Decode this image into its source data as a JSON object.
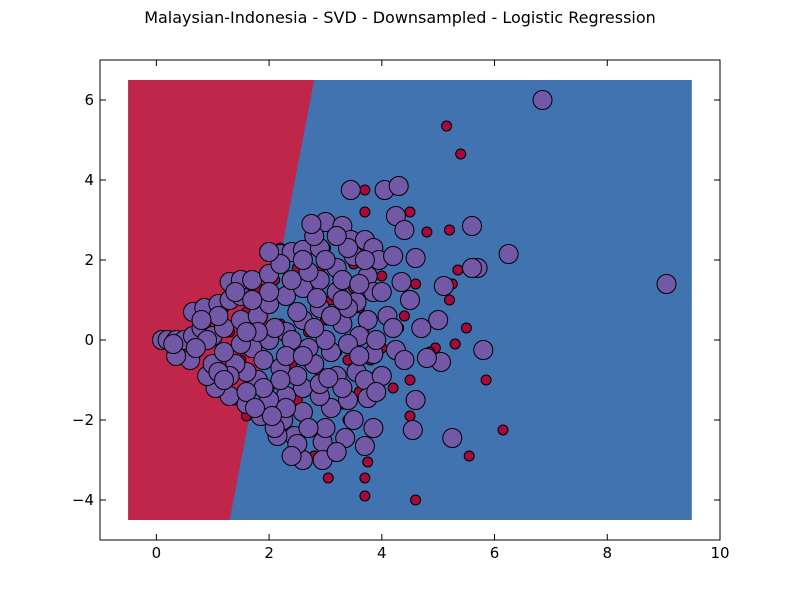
{
  "chart_data": {
    "type": "scatter",
    "title": "Malaysian-Indonesia - SVD - Downsampled - Logistic Regression",
    "xlabel": "",
    "ylabel": "",
    "xlim": [
      -1,
      10
    ],
    "ylim": [
      -5,
      7
    ],
    "x_ticks": [
      0,
      2,
      4,
      6,
      8,
      10
    ],
    "y_ticks": [
      -4,
      -2,
      0,
      2,
      4,
      6
    ],
    "x_tick_labels": [
      "0",
      "2",
      "4",
      "6",
      "8",
      "10"
    ],
    "y_tick_labels": [
      "−4",
      "−2",
      "0",
      "2",
      "4",
      "6"
    ],
    "grid": false,
    "legend": "none",
    "decision_regions": {
      "extent_x": [
        -0.5,
        9.5
      ],
      "extent_y": [
        -4.5,
        6.5
      ],
      "boundary": [
        [
          1.3,
          -4.5
        ],
        [
          2.8,
          6.5
        ]
      ],
      "left_color": "#c0254a",
      "right_color": "#4073b0"
    },
    "series": [
      {
        "class": "small",
        "color": "#a50a3a",
        "points": [
          [
            5.15,
            5.35
          ],
          [
            5.4,
            4.65
          ],
          [
            3.7,
            3.75
          ],
          [
            3.7,
            3.2
          ],
          [
            4.2,
            3.1
          ],
          [
            4.5,
            3.2
          ],
          [
            4.3,
            3.0
          ],
          [
            4.8,
            2.7
          ],
          [
            5.2,
            2.75
          ],
          [
            5.35,
            1.75
          ],
          [
            5.2,
            1.0
          ],
          [
            5.25,
            1.4
          ],
          [
            5.5,
            0.3
          ],
          [
            5.3,
            -0.1
          ],
          [
            4.95,
            -0.2
          ],
          [
            4.85,
            -0.3
          ],
          [
            5.85,
            -1.0
          ],
          [
            5.55,
            -2.9
          ],
          [
            6.15,
            -2.25
          ],
          [
            4.6,
            -4.0
          ],
          [
            3.7,
            -3.9
          ],
          [
            3.7,
            -3.45
          ],
          [
            3.75,
            -3.05
          ],
          [
            3.05,
            -3.45
          ],
          [
            4.5,
            -1.9
          ],
          [
            4.5,
            -1.0
          ],
          [
            4.3,
            0.3
          ],
          [
            4.1,
            0.7
          ],
          [
            4.4,
            0.6
          ],
          [
            3.9,
            1.2
          ],
          [
            4.0,
            1.6
          ],
          [
            3.5,
            1.9
          ],
          [
            3.3,
            2.5
          ],
          [
            2.6,
            2.2
          ],
          [
            2.2,
            2.3
          ],
          [
            2.4,
            1.2
          ],
          [
            2.0,
            0.9
          ],
          [
            1.6,
            0.7
          ],
          [
            1.2,
            0.8
          ],
          [
            1.0,
            0.6
          ],
          [
            1.7,
            -0.1
          ],
          [
            1.5,
            -0.5
          ],
          [
            2.2,
            -0.8
          ],
          [
            2.0,
            -1.2
          ],
          [
            1.4,
            -1.5
          ],
          [
            1.6,
            -1.9
          ],
          [
            2.3,
            -2.0
          ],
          [
            2.6,
            -2.3
          ],
          [
            2.8,
            -2.9
          ],
          [
            3.3,
            -1.1
          ],
          [
            3.6,
            -1.3
          ],
          [
            3.9,
            -0.9
          ],
          [
            4.2,
            -1.2
          ],
          [
            3.2,
            -0.3
          ],
          [
            3.0,
            0.5
          ],
          [
            2.9,
            1.7
          ],
          [
            3.6,
            0.8
          ],
          [
            3.8,
            -0.5
          ],
          [
            2.5,
            -1.5
          ],
          [
            2.7,
            0.2
          ],
          [
            3.5,
            1.3
          ],
          [
            4.3,
            1.5
          ],
          [
            4.6,
            1.4
          ],
          [
            4.0,
            -0.2
          ],
          [
            3.4,
            -2.0
          ],
          [
            2.1,
            1.5
          ],
          [
            1.9,
            -0.4
          ],
          [
            1.3,
            0.2
          ],
          [
            2.4,
            -0.6
          ],
          [
            2.9,
            -0.8
          ],
          [
            3.1,
            1.0
          ],
          [
            3.7,
            0.3
          ],
          [
            3.3,
            -1.6
          ],
          [
            2.2,
            0.4
          ],
          [
            1.8,
            1.3
          ],
          [
            3.0,
            2.3
          ],
          [
            2.5,
            1.8
          ],
          [
            3.4,
            -0.5
          ]
        ]
      },
      {
        "class": "large",
        "color": "#7458a8",
        "points": [
          [
            6.85,
            6.0
          ],
          [
            9.05,
            1.4
          ],
          [
            3.45,
            3.75
          ],
          [
            4.05,
            3.75
          ],
          [
            4.3,
            3.85
          ],
          [
            4.25,
            3.1
          ],
          [
            4.4,
            2.75
          ],
          [
            5.6,
            2.85
          ],
          [
            6.25,
            2.15
          ],
          [
            5.7,
            1.8
          ],
          [
            5.6,
            1.8
          ],
          [
            4.6,
            2.05
          ],
          [
            4.35,
            1.45
          ],
          [
            5.1,
            1.35
          ],
          [
            5.0,
            0.5
          ],
          [
            4.7,
            0.3
          ],
          [
            5.8,
            -0.25
          ],
          [
            5.05,
            -0.55
          ],
          [
            4.8,
            -0.45
          ],
          [
            4.6,
            -1.5
          ],
          [
            4.55,
            -2.25
          ],
          [
            5.25,
            -2.45
          ],
          [
            3.85,
            -2.2
          ],
          [
            3.7,
            -2.65
          ],
          [
            3.35,
            -2.45
          ],
          [
            2.95,
            -2.55
          ],
          [
            2.95,
            -3.0
          ],
          [
            2.6,
            -3.0
          ],
          [
            2.45,
            -2.4
          ],
          [
            2.15,
            -2.4
          ],
          [
            2.25,
            -2.0
          ],
          [
            1.85,
            -1.9
          ],
          [
            1.6,
            -1.6
          ],
          [
            1.3,
            -1.4
          ],
          [
            1.05,
            -1.2
          ],
          [
            0.9,
            -0.9
          ],
          [
            1.0,
            -0.6
          ],
          [
            0.6,
            -0.5
          ],
          [
            0.35,
            -0.4
          ],
          [
            0.1,
            0.0
          ],
          [
            0.2,
            0.0
          ],
          [
            0.35,
            0.0
          ],
          [
            0.5,
            0.0
          ],
          [
            0.65,
            0.1
          ],
          [
            0.8,
            0.3
          ],
          [
            0.65,
            0.7
          ],
          [
            0.85,
            0.8
          ],
          [
            1.1,
            0.9
          ],
          [
            1.3,
            1.0
          ],
          [
            1.5,
            1.1
          ],
          [
            1.3,
            1.45
          ],
          [
            1.5,
            1.5
          ],
          [
            1.7,
            1.5
          ],
          [
            2.0,
            1.65
          ],
          [
            2.2,
            2.15
          ],
          [
            2.4,
            2.2
          ],
          [
            2.6,
            2.25
          ],
          [
            2.9,
            2.3
          ],
          [
            3.0,
            2.95
          ],
          [
            3.3,
            2.85
          ],
          [
            3.45,
            2.5
          ],
          [
            3.7,
            2.5
          ],
          [
            3.85,
            2.3
          ],
          [
            3.95,
            2.0
          ],
          [
            3.75,
            1.6
          ],
          [
            3.85,
            1.2
          ],
          [
            3.55,
            0.95
          ],
          [
            3.75,
            0.5
          ],
          [
            3.6,
            0.1
          ],
          [
            3.85,
            -0.35
          ],
          [
            3.55,
            -0.8
          ],
          [
            3.7,
            -1.0
          ],
          [
            3.75,
            -1.45
          ],
          [
            3.4,
            -1.5
          ],
          [
            3.1,
            -1.7
          ],
          [
            2.9,
            -1.4
          ],
          [
            2.6,
            -1.2
          ],
          [
            2.3,
            -1.4
          ],
          [
            2.0,
            -1.5
          ],
          [
            1.8,
            -1.0
          ],
          [
            1.6,
            -0.8
          ],
          [
            1.4,
            -0.6
          ],
          [
            1.2,
            -0.3
          ],
          [
            1.0,
            0.1
          ],
          [
            1.2,
            0.3
          ],
          [
            1.5,
            0.5
          ],
          [
            1.8,
            0.6
          ],
          [
            2.0,
            0.9
          ],
          [
            2.3,
            1.1
          ],
          [
            2.6,
            1.3
          ],
          [
            2.9,
            1.5
          ],
          [
            3.2,
            1.8
          ],
          [
            3.5,
            2.1
          ],
          [
            3.2,
            1.2
          ],
          [
            2.9,
            0.8
          ],
          [
            2.6,
            0.5
          ],
          [
            2.3,
            0.2
          ],
          [
            2.0,
            0.0
          ],
          [
            1.7,
            -0.2
          ],
          [
            1.9,
            -0.5
          ],
          [
            2.2,
            -0.7
          ],
          [
            2.5,
            -0.9
          ],
          [
            2.8,
            -0.6
          ],
          [
            3.1,
            -0.3
          ],
          [
            3.0,
            0.0
          ],
          [
            2.7,
            -0.2
          ],
          [
            2.4,
            0.0
          ],
          [
            2.1,
            0.3
          ],
          [
            1.8,
            0.2
          ],
          [
            2.5,
            0.7
          ],
          [
            2.8,
            0.3
          ],
          [
            3.3,
            0.4
          ],
          [
            3.4,
            0.8
          ],
          [
            3.1,
            0.6
          ],
          [
            3.4,
            -0.1
          ],
          [
            3.2,
            -0.9
          ],
          [
            2.9,
            -1.1
          ],
          [
            2.2,
            -1.0
          ],
          [
            1.5,
            -0.1
          ],
          [
            1.1,
            0.6
          ],
          [
            2.0,
            1.2
          ],
          [
            2.7,
            1.7
          ],
          [
            3.0,
            2.0
          ],
          [
            2.8,
            2.6
          ],
          [
            3.4,
            2.3
          ],
          [
            4.0,
            1.2
          ],
          [
            4.1,
            0.6
          ],
          [
            4.25,
            -0.25
          ],
          [
            4.4,
            -0.5
          ],
          [
            4.0,
            -0.9
          ],
          [
            3.9,
            -1.3
          ],
          [
            3.5,
            -2.0
          ],
          [
            3.0,
            -2.2
          ],
          [
            2.6,
            -1.8
          ],
          [
            2.3,
            -1.7
          ],
          [
            1.9,
            -1.2
          ],
          [
            1.6,
            -1.3
          ],
          [
            1.3,
            -0.9
          ],
          [
            0.9,
            0.0
          ],
          [
            0.7,
            -0.2
          ],
          [
            1.1,
            -0.8
          ],
          [
            1.4,
            1.2
          ],
          [
            1.7,
            1.0
          ],
          [
            2.4,
            1.5
          ],
          [
            2.2,
            1.9
          ],
          [
            2.0,
            2.2
          ],
          [
            2.6,
            2.0
          ],
          [
            3.2,
            2.6
          ],
          [
            3.7,
            2.0
          ],
          [
            3.3,
            1.5
          ],
          [
            3.6,
            1.4
          ],
          [
            4.2,
            2.1
          ],
          [
            4.5,
            1.0
          ],
          [
            4.2,
            0.3
          ],
          [
            3.9,
            0.0
          ],
          [
            3.6,
            -0.4
          ],
          [
            3.3,
            -1.2
          ],
          [
            2.7,
            -2.2
          ],
          [
            2.1,
            -2.2
          ],
          [
            2.5,
            -2.6
          ],
          [
            3.2,
            -2.8
          ],
          [
            2.4,
            -2.9
          ],
          [
            2.05,
            -1.9
          ],
          [
            1.75,
            -1.7
          ],
          [
            1.2,
            -1.0
          ],
          [
            0.8,
            0.5
          ],
          [
            0.3,
            -0.1
          ],
          [
            2.75,
            2.9
          ],
          [
            3.3,
            1.0
          ],
          [
            2.85,
            1.05
          ],
          [
            1.6,
            0.2
          ],
          [
            2.3,
            -0.4
          ],
          [
            2.6,
            -0.4
          ],
          [
            3.05,
            -0.95
          ]
        ]
      }
    ]
  }
}
